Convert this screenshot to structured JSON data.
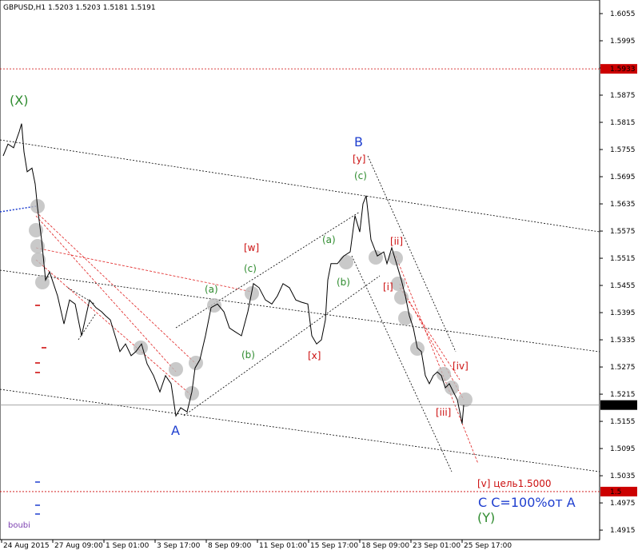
{
  "chart_data": {
    "type": "line",
    "title": "GBPUSD,H1  1.5203 1.5203 1.5181 1.5191",
    "watermark": "boubi",
    "color": "#000000",
    "x": [
      2,
      8,
      15,
      22,
      25,
      28,
      32,
      38,
      42,
      45,
      50,
      55,
      60,
      70,
      78,
      85,
      92,
      100,
      110,
      118,
      125,
      130,
      136,
      142,
      148,
      155,
      162,
      168,
      175,
      182,
      190,
      198,
      205,
      212,
      218,
      224,
      232,
      238,
      242,
      248,
      255,
      262,
      270,
      278,
      285,
      292,
      300,
      308,
      315,
      322,
      330,
      338,
      345,
      352,
      360,
      368,
      375,
      383,
      388,
      394,
      400,
      405,
      408,
      412,
      420,
      428,
      436,
      442,
      448,
      452,
      456,
      462,
      470,
      478,
      482,
      488,
      494,
      500,
      505,
      510,
      515,
      520,
      525,
      530,
      535,
      540,
      545,
      550,
      555,
      560,
      565,
      570,
      576,
      578
    ],
    "values": [
      1.5741,
      1.5767,
      1.5759,
      1.5794,
      1.5812,
      1.575,
      1.5706,
      1.5714,
      1.5679,
      1.5626,
      1.5556,
      1.5467,
      1.5485,
      1.5432,
      1.537,
      1.5423,
      1.5414,
      1.5344,
      1.5423,
      1.5406,
      1.5397,
      1.5388,
      1.5379,
      1.5344,
      1.5309,
      1.5326,
      1.53,
      1.5309,
      1.5326,
      1.5282,
      1.5256,
      1.522,
      1.5256,
      1.5238,
      1.5167,
      1.5185,
      1.5176,
      1.522,
      1.5273,
      1.5291,
      1.5344,
      1.5406,
      1.5414,
      1.5397,
      1.5361,
      1.5353,
      1.5344,
      1.5397,
      1.5459,
      1.545,
      1.5423,
      1.5414,
      1.5432,
      1.5459,
      1.545,
      1.5423,
      1.5418,
      1.5414,
      1.5344,
      1.5326,
      1.5335,
      1.5379,
      1.5467,
      1.5503,
      1.5503,
      1.552,
      1.5529,
      1.5609,
      1.5573,
      1.5635,
      1.5653,
      1.5556,
      1.552,
      1.5529,
      1.5503,
      1.5538,
      1.5503,
      1.5467,
      1.5432,
      1.5388,
      1.5361,
      1.5317,
      1.5309,
      1.5256,
      1.5238,
      1.5256,
      1.5264,
      1.5256,
      1.5229,
      1.5238,
      1.522,
      1.5203,
      1.515,
      1.5191
    ],
    "xlim": [
      -2,
      748
    ],
    "xticks": [
      {
        "value": 0,
        "label": "24 Aug 2015"
      },
      {
        "value": 64,
        "label": "27 Aug 09:00"
      },
      {
        "value": 128,
        "label": "1 Sep 01:00"
      },
      {
        "value": 192,
        "label": "3 Sep 17:00"
      },
      {
        "value": 256,
        "label": "8 Sep 09:00"
      },
      {
        "value": 320,
        "label": "11 Sep 01:00"
      },
      {
        "value": 384,
        "label": "15 Sep 17:00"
      },
      {
        "value": 448,
        "label": "18 Sep 09:00"
      },
      {
        "value": 512,
        "label": "23 Sep 01:00"
      },
      {
        "value": 576,
        "label": "25 Sep 17:00"
      }
    ],
    "ylim": [
      1.4894,
      1.6085
    ],
    "yticks": [
      1.6055,
      1.5995,
      1.5935,
      1.5875,
      1.5815,
      1.5755,
      1.5695,
      1.5635,
      1.5575,
      1.5515,
      1.5455,
      1.5395,
      1.5335,
      1.5275,
      1.5215,
      1.5155,
      1.5095,
      1.5035,
      1.4975,
      1.4915
    ],
    "hlines": [
      {
        "value": 1.5933,
        "color": "#cc0000"
      },
      {
        "value": 1.5191,
        "color": "#999999"
      },
      {
        "value": 1.5,
        "color": "#cc0000"
      }
    ],
    "annotations": [
      "(X)",
      "B",
      "[y]",
      "(c)",
      "(a)",
      "(b)",
      "[w]",
      "(c)",
      "(a)",
      "(b)",
      "[x]",
      "[ii]",
      "[i]",
      "[iv]",
      "[iii]",
      "A",
      "[v]  цель1.5000",
      "C  C=100%от A",
      "(Y)"
    ]
  }
}
